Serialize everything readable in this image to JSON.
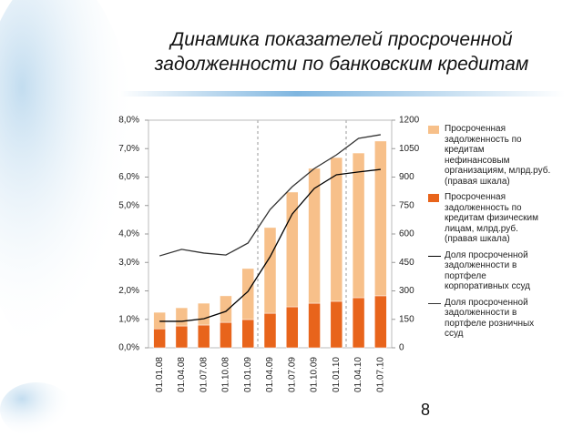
{
  "title": "Динамика показателей просроченной задолженности по банковским кредитам",
  "page_number": "8",
  "chart_data": {
    "type": "bar",
    "categories": [
      "01.01.08",
      "01.04.08",
      "01.07.08",
      "01.10.08",
      "01.01.09",
      "01.04.09",
      "01.07.09",
      "01.10.09",
      "01.01.10",
      "01.04.10",
      "01.07.10"
    ],
    "series": [
      {
        "name": "Просроченная задолженность по кредитам нефинансовым организациям, млрд.руб. (правая шкала)",
        "type": "bar",
        "axis": "y2",
        "color": "#f7c08a",
        "values": [
          87,
          96,
          115,
          140,
          269,
          452,
          605,
          711,
          758,
          763,
          816
        ]
      },
      {
        "name": "Просроченная задолженность по кредитам физическим лицам, млрд.руб. (правая шкала)",
        "type": "bar",
        "axis": "y2",
        "color": "#e8641b",
        "values": [
          100,
          115,
          120,
          134,
          149,
          182,
          216,
          235,
          245,
          264,
          274
        ]
      },
      {
        "name": "Доля просроченной задолженности в портфеле корпоративных ссуд",
        "type": "line",
        "axis": "y",
        "color": "#000000",
        "values": [
          0.93,
          0.93,
          1.02,
          1.28,
          1.98,
          3.2,
          4.7,
          5.6,
          6.08,
          6.18,
          6.27
        ]
      },
      {
        "name": "Доля просроченной задолженности в портфеле розничных ссуд",
        "type": "line",
        "axis": "y",
        "color": "#333333",
        "values": [
          3.23,
          3.46,
          3.33,
          3.26,
          3.68,
          4.86,
          5.66,
          6.3,
          6.78,
          7.36,
          7.49
        ]
      }
    ],
    "ylim": [
      0,
      8
    ],
    "yticks": [
      {
        "value": 0,
        "label": "0,0%"
      },
      {
        "value": 1,
        "label": "1,0%"
      },
      {
        "value": 2,
        "label": "2,0%"
      },
      {
        "value": 3,
        "label": "3,0%"
      },
      {
        "value": 4,
        "label": "4,0%"
      },
      {
        "value": 5,
        "label": "5,0%"
      },
      {
        "value": 6,
        "label": "6,0%"
      },
      {
        "value": 7,
        "label": "7,0%"
      },
      {
        "value": 8,
        "label": "8,0%"
      }
    ],
    "y2lim": [
      0,
      1200
    ],
    "y2ticks": [
      0,
      150,
      300,
      450,
      600,
      750,
      900,
      1050,
      1200
    ],
    "legend": "right"
  }
}
